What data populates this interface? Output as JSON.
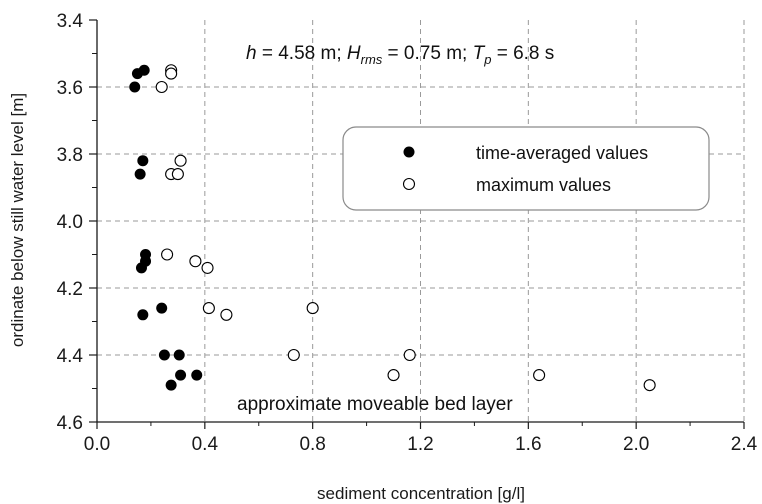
{
  "chart_data": {
    "type": "scatter",
    "xlabel": "sediment concentration [g/l]",
    "ylabel": "ordinate below still water level [m]",
    "xlim": [
      0.0,
      2.4
    ],
    "ylim": [
      3.4,
      4.6
    ],
    "y_inverted": true,
    "x_ticks": [
      "0.0",
      "0.4",
      "0.8",
      "1.2",
      "1.6",
      "2.0",
      "2.4"
    ],
    "y_ticks": [
      "3.4",
      "3.6",
      "3.8",
      "4.0",
      "4.2",
      "4.4",
      "4.6"
    ],
    "grid": "dashed",
    "legend_placement": "upper-right",
    "annotation": {
      "h": "h",
      "h_val": " = 4.58 m; ",
      "H": "H",
      "H_sub": "rms",
      "H_val": " = 0.75 m; ",
      "T": "T",
      "T_sub": "p",
      "T_val": " = 6.8 s"
    },
    "bed_layer_label": "approximate moveable bed layer",
    "series": [
      {
        "name": "time-averaged values",
        "marker": "filled-circle",
        "points": [
          [
            0.15,
            3.56
          ],
          [
            0.175,
            3.55
          ],
          [
            0.14,
            3.6
          ],
          [
            0.17,
            3.82
          ],
          [
            0.16,
            3.86
          ],
          [
            0.18,
            4.1
          ],
          [
            0.18,
            4.12
          ],
          [
            0.165,
            4.14
          ],
          [
            0.24,
            4.26
          ],
          [
            0.17,
            4.28
          ],
          [
            0.25,
            4.4
          ],
          [
            0.305,
            4.4
          ],
          [
            0.31,
            4.46
          ],
          [
            0.37,
            4.46
          ],
          [
            0.275,
            4.49
          ]
        ]
      },
      {
        "name": "maximum values",
        "marker": "open-circle",
        "points": [
          [
            0.275,
            3.55
          ],
          [
            0.275,
            3.56
          ],
          [
            0.24,
            3.6
          ],
          [
            0.31,
            3.82
          ],
          [
            0.275,
            3.86
          ],
          [
            0.3,
            3.86
          ],
          [
            0.26,
            4.1
          ],
          [
            0.365,
            4.12
          ],
          [
            0.41,
            4.14
          ],
          [
            0.415,
            4.26
          ],
          [
            0.8,
            4.26
          ],
          [
            0.48,
            4.28
          ],
          [
            0.73,
            4.4
          ],
          [
            1.16,
            4.4
          ],
          [
            1.1,
            4.46
          ],
          [
            1.64,
            4.46
          ],
          [
            2.05,
            4.49
          ]
        ]
      }
    ],
    "colors": {
      "axis": "#1a1a1a",
      "grid": "#9a9a9a",
      "marker": "#000000",
      "legend_border": "#8a8a8a"
    }
  }
}
